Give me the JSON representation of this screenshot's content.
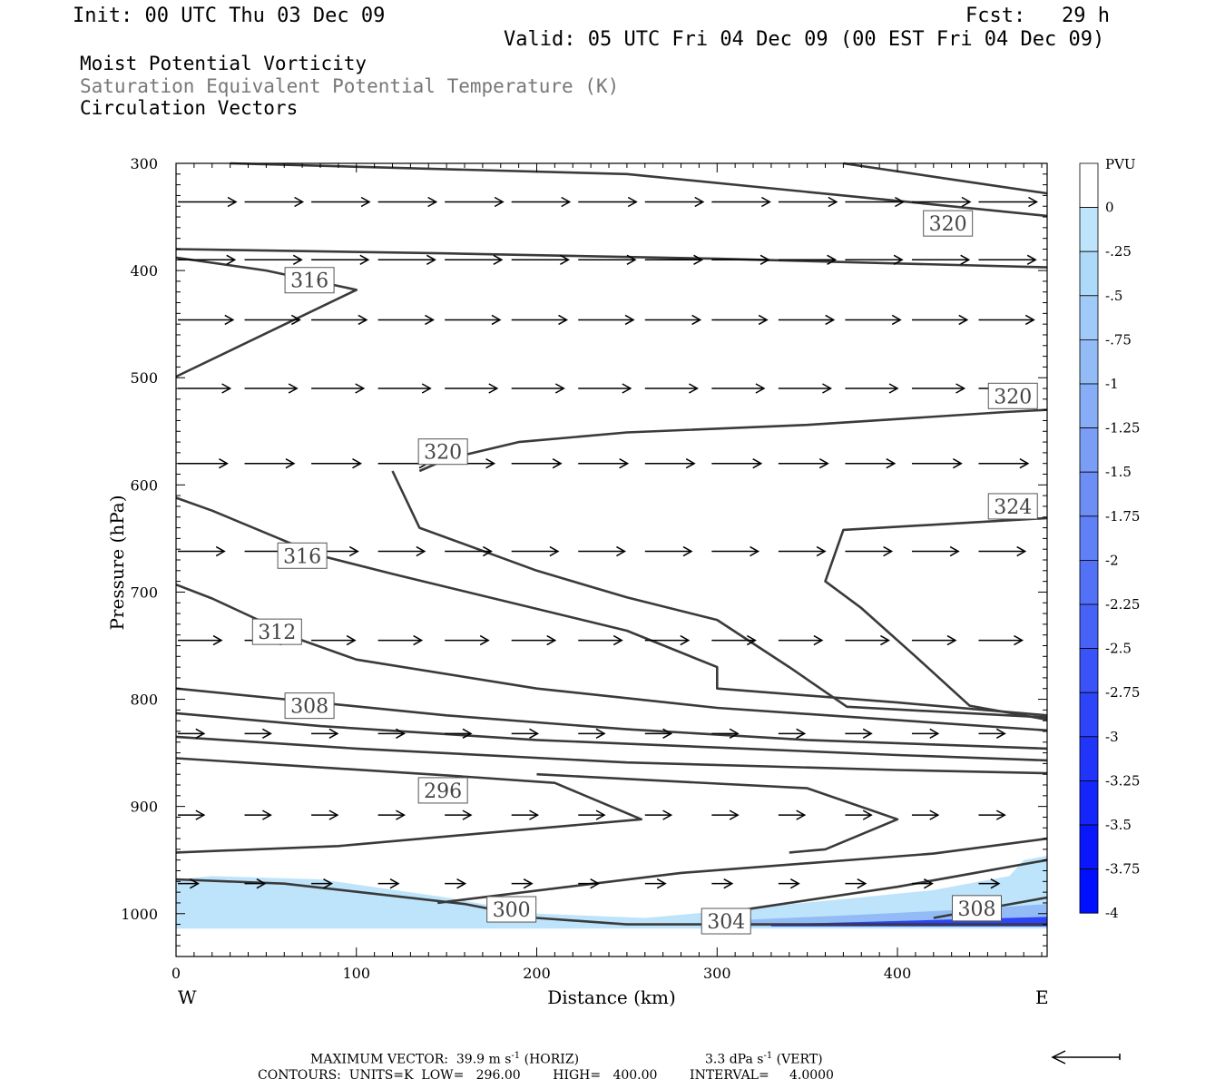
{
  "header": {
    "init": "Init: 00 UTC Thu 03 Dec 09",
    "fcst": "Fcst:   29 h",
    "valid": "Valid: 05 UTC Fri 04 Dec 09 (00 EST Fri 04 Dec 09)",
    "field1": "Moist Potential Vorticity",
    "field2": "Saturation Equivalent Potential Temperature (K)",
    "field3": "Circulation Vectors"
  },
  "footer": {
    "max_vector": "MAXIMUM VECTOR:  39.9 m s",
    "max_vector_sup": "-1",
    "max_vector_horiz": " (HORIZ)",
    "max_vector_vert": "3.3 dPa s",
    "max_vector_vert_sup": "-1",
    "max_vector_vert_end": " (VERT)",
    "contours": "CONTOURS:  UNITS=K  LOW=   296.00        HIGH=   400.00        INTERVAL=     4.0000"
  },
  "colors": {
    "contour": "#3a3a3a",
    "axis": "#000000",
    "pv_light": "#bde4fa",
    "pv_dark": "#0a0aff"
  },
  "chart_data": {
    "type": "cross-section",
    "xlabel": "Distance (km)",
    "ylabel": "Pressure (hPa)",
    "x_end_left": "W",
    "x_end_right": "E",
    "xlim": [
      0,
      483
    ],
    "ylim": [
      1040,
      300
    ],
    "x_ticks": [
      0,
      100,
      200,
      300,
      400
    ],
    "y_ticks": [
      300,
      400,
      500,
      600,
      700,
      800,
      900,
      1000
    ],
    "colorbar": {
      "unit_label": "PVU",
      "labels": [
        "0",
        "-.25",
        "-.5",
        "-.75",
        "-1",
        "-1.25",
        "-1.5",
        "-1.75",
        "-2",
        "-2.25",
        "-2.5",
        "-2.75",
        "-3",
        "-3.25",
        "-3.5",
        "-3.75",
        "-4"
      ],
      "colors": [
        "#ffffff",
        "#bde4fa",
        "#aedaf9",
        "#a0cbf8",
        "#93bcf7",
        "#86adf6",
        "#7a9ef5",
        "#6d8ff5",
        "#6080f5",
        "#5371f6",
        "#4662f7",
        "#3a53f8",
        "#2d44f9",
        "#2135fa",
        "#1526fb",
        "#0a17fc",
        "#0010ff"
      ]
    },
    "contour_labels": [
      {
        "text": "316",
        "x": 74,
        "y": 409
      },
      {
        "text": "320",
        "x": 428,
        "y": 356
      },
      {
        "text": "320",
        "x": 464,
        "y": 517
      },
      {
        "text": "320",
        "x": 148,
        "y": 569
      },
      {
        "text": "324",
        "x": 464,
        "y": 620
      },
      {
        "text": "316",
        "x": 70,
        "y": 666
      },
      {
        "text": "312",
        "x": 56,
        "y": 737
      },
      {
        "text": "308",
        "x": 74,
        "y": 806
      },
      {
        "text": "296",
        "x": 148,
        "y": 885
      },
      {
        "text": "300",
        "x": 186,
        "y": 996
      },
      {
        "text": "304",
        "x": 305,
        "y": 1007
      },
      {
        "text": "308",
        "x": 444,
        "y": 995
      }
    ],
    "contours": [
      {
        "points": [
          [
            0,
            499
          ],
          [
            100,
            418
          ],
          [
            50,
            400
          ],
          [
            0,
            388
          ]
        ]
      },
      {
        "points": [
          [
            30,
            300
          ],
          [
            250,
            310
          ],
          [
            400,
            335
          ],
          [
            483,
            349
          ]
        ]
      },
      {
        "points": [
          [
            370,
            300
          ],
          [
            430,
            315
          ],
          [
            483,
            328
          ]
        ]
      },
      {
        "points": [
          [
            0,
            380
          ],
          [
            150,
            384
          ],
          [
            300,
            389
          ],
          [
            483,
            397
          ]
        ]
      },
      {
        "points": [
          [
            135,
            587
          ],
          [
            150,
            576
          ],
          [
            190,
            560
          ],
          [
            250,
            551
          ],
          [
            350,
            544
          ],
          [
            460,
            532
          ],
          [
            483,
            530
          ]
        ]
      },
      {
        "points": [
          [
            120,
            587
          ],
          [
            135,
            640
          ],
          [
            200,
            680
          ],
          [
            250,
            705
          ],
          [
            300,
            726
          ],
          [
            340,
            770
          ],
          [
            372,
            807
          ],
          [
            483,
            817
          ]
        ]
      },
      {
        "points": [
          [
            483,
            631
          ],
          [
            370,
            642
          ],
          [
            360,
            690
          ],
          [
            380,
            715
          ],
          [
            410,
            760
          ],
          [
            440,
            806
          ],
          [
            483,
            819
          ]
        ]
      },
      {
        "points": [
          [
            0,
            612
          ],
          [
            20,
            624
          ],
          [
            80,
            666
          ],
          [
            120,
            683
          ],
          [
            250,
            736
          ],
          [
            300,
            770
          ],
          [
            300,
            790
          ],
          [
            400,
            803
          ],
          [
            483,
            815
          ]
        ]
      },
      {
        "points": [
          [
            0,
            693
          ],
          [
            20,
            706
          ],
          [
            70,
            745
          ],
          [
            100,
            763
          ],
          [
            200,
            790
          ],
          [
            300,
            808
          ],
          [
            483,
            829
          ]
        ]
      },
      {
        "points": [
          [
            0,
            790
          ],
          [
            60,
            800
          ],
          [
            150,
            815
          ],
          [
            250,
            828
          ],
          [
            350,
            838
          ],
          [
            483,
            846
          ]
        ]
      },
      {
        "points": [
          [
            0,
            813
          ],
          [
            80,
            825
          ],
          [
            200,
            838
          ],
          [
            300,
            845
          ],
          [
            400,
            852
          ],
          [
            483,
            857
          ]
        ]
      },
      {
        "points": [
          [
            0,
            835
          ],
          [
            100,
            846
          ],
          [
            250,
            859
          ],
          [
            400,
            866
          ],
          [
            483,
            869
          ]
        ]
      },
      {
        "points": [
          [
            0,
            855
          ],
          [
            150,
            871
          ],
          [
            210,
            878
          ],
          [
            258,
            912
          ],
          [
            170,
            925
          ],
          [
            90,
            937
          ],
          [
            0,
            943
          ]
        ]
      },
      {
        "points": [
          [
            200,
            870
          ],
          [
            350,
            883
          ],
          [
            400,
            912
          ],
          [
            360,
            940
          ],
          [
            340,
            943
          ]
        ]
      },
      {
        "points": [
          [
            0,
            968
          ],
          [
            60,
            972
          ],
          [
            160,
            991
          ],
          [
            200,
            1004
          ],
          [
            250,
            1010
          ],
          [
            483,
            1010
          ]
        ]
      },
      {
        "points": [
          [
            145,
            990
          ],
          [
            280,
            962
          ],
          [
            420,
            944
          ],
          [
            483,
            930
          ]
        ]
      },
      {
        "points": [
          [
            300,
            1000
          ],
          [
            400,
            975
          ],
          [
            483,
            950
          ]
        ]
      },
      {
        "points": [
          [
            420,
            1004
          ],
          [
            483,
            985
          ]
        ]
      }
    ],
    "pv_shading": [
      {
        "level": "-.25",
        "points": [
          [
            20,
            965
          ],
          [
            80,
            968
          ],
          [
            150,
            985
          ],
          [
            200,
            1000
          ],
          [
            260,
            1004
          ],
          [
            300,
            998
          ],
          [
            360,
            988
          ],
          [
            420,
            978
          ],
          [
            462,
            965
          ],
          [
            470,
            950
          ],
          [
            483,
            946
          ],
          [
            483,
            1014
          ],
          [
            0,
            1014
          ],
          [
            0,
            968
          ]
        ]
      },
      {
        "level": "-1",
        "points": [
          [
            300,
            1007
          ],
          [
            380,
            1001
          ],
          [
            440,
            996
          ],
          [
            483,
            991
          ],
          [
            483,
            1012
          ],
          [
            300,
            1012
          ]
        ]
      },
      {
        "level": "-3",
        "points": [
          [
            330,
            1010
          ],
          [
            420,
            1006
          ],
          [
            483,
            1003
          ],
          [
            483,
            1012
          ],
          [
            330,
            1012
          ]
        ]
      }
    ],
    "vectors": [
      {
        "p": 336,
        "xs": [
          0,
          37,
          74,
          111,
          148,
          185,
          222,
          259,
          296,
          333,
          370,
          407,
          444
        ],
        "u": 1.0
      },
      {
        "p": 390,
        "xs": [
          0,
          37,
          74,
          111,
          148,
          185,
          222,
          259,
          296,
          333,
          370,
          407,
          444
        ],
        "u": 0.98
      },
      {
        "p": 446,
        "xs": [
          0,
          37,
          74,
          111,
          148,
          185,
          222,
          259,
          296,
          333,
          370,
          407,
          444
        ],
        "u": 0.95
      },
      {
        "p": 510,
        "xs": [
          0,
          37,
          74,
          111,
          148,
          185,
          222,
          259,
          296,
          333,
          370,
          407,
          444
        ],
        "u": 0.9
      },
      {
        "p": 580,
        "xs": [
          0,
          37,
          74,
          111,
          148,
          185,
          222,
          259,
          296,
          333,
          370,
          407,
          444
        ],
        "u": 0.85
      },
      {
        "p": 662,
        "xs": [
          0,
          37,
          74,
          111,
          148,
          185,
          222,
          259,
          296,
          333,
          370,
          407,
          444
        ],
        "u": 0.8
      },
      {
        "p": 745,
        "xs": [
          0,
          37,
          74,
          111,
          148,
          185,
          222,
          259,
          296,
          333,
          370,
          407,
          444
        ],
        "u": 0.75
      },
      {
        "p": 832,
        "xs": [
          0,
          37,
          74,
          111,
          148,
          185,
          222,
          259,
          296,
          333,
          370,
          407,
          444
        ],
        "u": 0.45
      },
      {
        "p": 908,
        "xs": [
          0,
          37,
          74,
          111,
          148,
          185,
          222,
          259,
          296,
          333,
          370,
          407,
          444
        ],
        "u": 0.45
      },
      {
        "p": 972,
        "xs": [
          0,
          37,
          74,
          111,
          148,
          185,
          222,
          259,
          296,
          333,
          370,
          407,
          444
        ],
        "u": 0.35
      }
    ]
  }
}
